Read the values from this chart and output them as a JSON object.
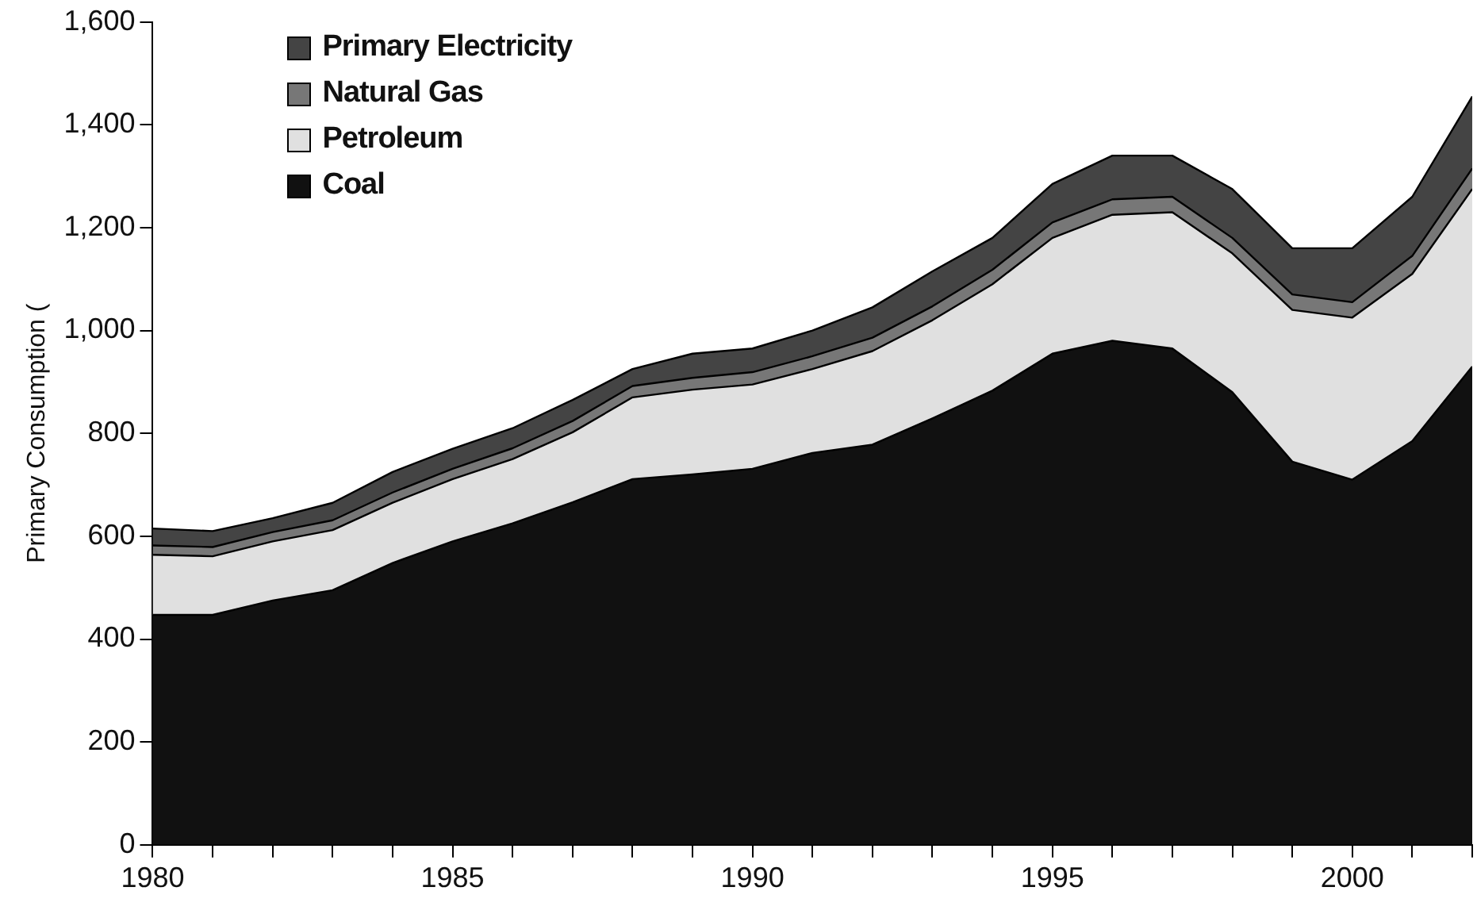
{
  "chart_data": {
    "type": "area",
    "stacked": true,
    "ylabel": "Primary Consumption (",
    "legend": "top left",
    "grid": false,
    "x": [
      1980,
      1981,
      1982,
      1983,
      1984,
      1985,
      1986,
      1987,
      1988,
      1989,
      1990,
      1991,
      1992,
      1993,
      1994,
      1995,
      1996,
      1997,
      1998,
      1999,
      2000,
      2001,
      2002
    ],
    "xlim": [
      1980,
      2002
    ],
    "xticks": [
      1980,
      {
        "value": 1981,
        "label": null
      },
      {
        "value": 1982,
        "label": null
      },
      {
        "value": 1983,
        "label": null
      },
      {
        "value": 1984,
        "label": null
      },
      1985,
      {
        "value": 1986,
        "label": null
      },
      {
        "value": 1987,
        "label": null
      },
      {
        "value": 1988,
        "label": null
      },
      {
        "value": 1989,
        "label": null
      },
      1990,
      {
        "value": 1991,
        "label": null
      },
      {
        "value": 1992,
        "label": null
      },
      {
        "value": 1993,
        "label": null
      },
      {
        "value": 1994,
        "label": null
      },
      1995,
      {
        "value": 1996,
        "label": null
      },
      {
        "value": 1997,
        "label": null
      },
      {
        "value": 1998,
        "label": null
      },
      {
        "value": 1999,
        "label": null
      },
      2000,
      {
        "value": 2001,
        "label": null
      },
      {
        "value": 2002,
        "label": null
      }
    ],
    "ylim": [
      0,
      1600
    ],
    "yticks": [
      0,
      200,
      400,
      600,
      800,
      {
        "value": 1000,
        "label": "1,000"
      },
      {
        "value": 1200,
        "label": "1,200"
      },
      {
        "value": 1400,
        "label": "1,400"
      },
      {
        "value": 1600,
        "label": "1,600"
      }
    ],
    "series": [
      {
        "name": "Coal",
        "color": "#111111",
        "values": [
          447,
          447,
          475,
          495,
          548,
          590,
          625,
          666,
          711,
          720,
          731,
          762,
          778,
          829,
          883,
          955,
          980,
          965,
          880,
          745,
          710,
          785,
          930
        ]
      },
      {
        "name": "Petroleum",
        "color": "#e0e0e0",
        "values": [
          117,
          114,
          115,
          117,
          117,
          121,
          125,
          136,
          159,
          165,
          164,
          163,
          182,
          191,
          207,
          225,
          245,
          265,
          270,
          295,
          315,
          325,
          345
        ]
      },
      {
        "name": "Natural Gas",
        "color": "#777777",
        "values": [
          18,
          18,
          18,
          19,
          20,
          20,
          21,
          22,
          22,
          23,
          24,
          25,
          26,
          27,
          28,
          30,
          30,
          30,
          30,
          30,
          30,
          35,
          40
        ]
      },
      {
        "name": "Primary Electricity",
        "color": "#444444",
        "values": [
          33,
          31,
          27,
          34,
          40,
          39,
          39,
          41,
          33,
          47,
          46,
          50,
          59,
          68,
          62,
          75,
          85,
          80,
          95,
          90,
          105,
          115,
          140
        ]
      }
    ]
  }
}
